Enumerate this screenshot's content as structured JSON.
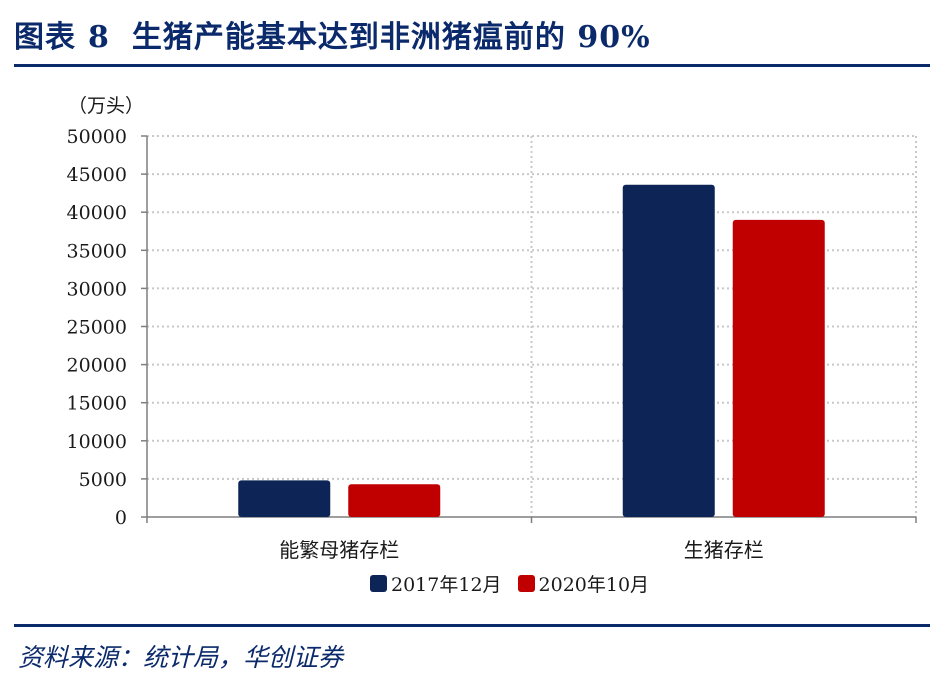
{
  "header": {
    "figure_label": "图表",
    "figure_number": "8",
    "title": "生猪产能基本达到非洲猪瘟前的 90%"
  },
  "footer": {
    "source": "资料来源：统计局，华创证券"
  },
  "colors": {
    "brand": "#0b2a6b",
    "series_2017": "#0d2457",
    "series_2020": "#c00000"
  },
  "chart_data": {
    "type": "bar",
    "unit_label": "（万头）",
    "categories": [
      "能繁母猪存栏",
      "生猪存栏"
    ],
    "series": [
      {
        "name": "2017年12月",
        "values": [
          4800,
          43600
        ]
      },
      {
        "name": "2020年10月",
        "values": [
          4300,
          39000
        ]
      }
    ],
    "ylim": [
      0,
      50000
    ],
    "yticks": [
      0,
      5000,
      10000,
      15000,
      20000,
      25000,
      30000,
      35000,
      40000,
      45000,
      50000
    ],
    "grid": true,
    "legend": "bottom"
  }
}
